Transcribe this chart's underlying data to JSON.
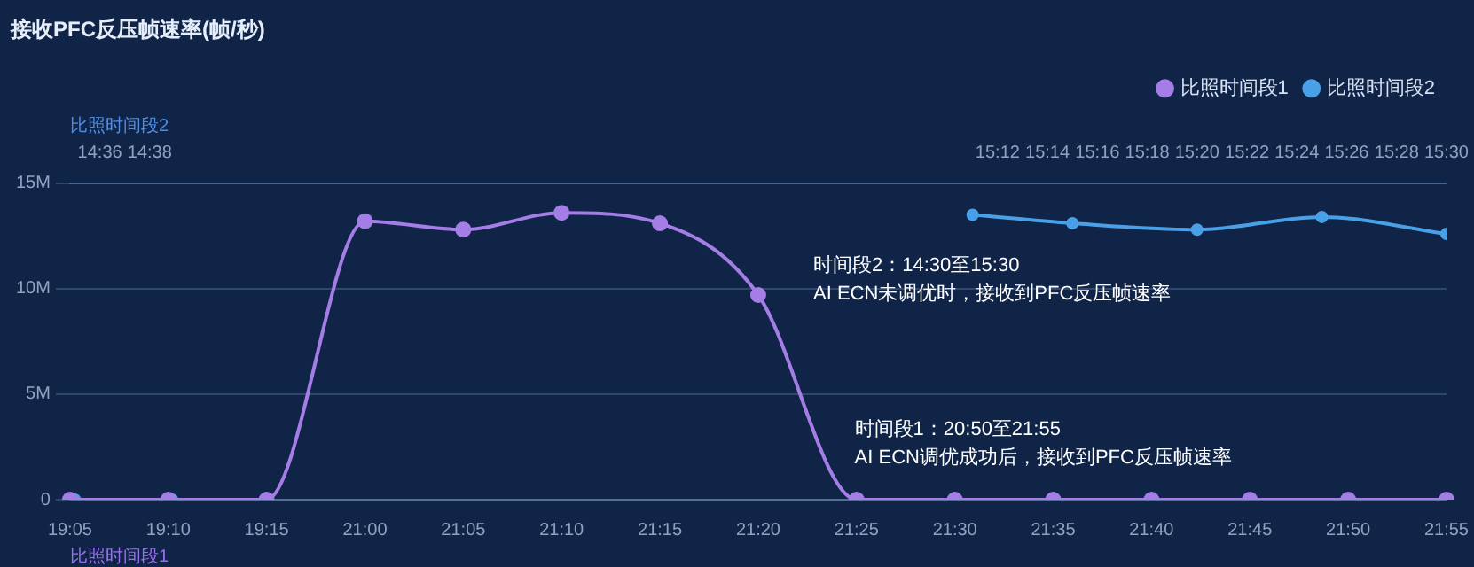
{
  "chart_data": {
    "type": "line",
    "title": "接收PFC反压帧速率(帧/秒)",
    "xlabel": "比照时间段1",
    "x2label": "比照时间段2",
    "categories": [
      "19:05",
      "19:10",
      "19:15",
      "21:00",
      "21:05",
      "21:10",
      "21:15",
      "21:20",
      "21:25",
      "21:30",
      "21:35",
      "21:40",
      "21:45",
      "21:50",
      "21:55"
    ],
    "series": [
      {
        "name": "比照时间段1",
        "color": "#a57de6",
        "values": [
          0,
          0,
          0,
          13200000,
          12800000,
          13600000,
          13100000,
          9700000,
          0,
          0,
          0,
          0,
          0,
          0,
          0
        ]
      },
      {
        "name": "比照时间段2",
        "color": "#4aa0e6",
        "axis": "x2",
        "x": [
          14.5833,
          14.6483,
          14.9,
          15.1833,
          15.25,
          15.3333,
          15.4167,
          15.5
        ],
        "values": [
          0,
          0,
          null,
          13500000,
          13100000,
          12800000,
          13400000,
          12600000
        ]
      }
    ],
    "ylim": [
      0,
      15000000
    ],
    "yticks": [
      0,
      {
        "value": 5000000,
        "label": "5M"
      },
      {
        "value": 10000000,
        "label": "10M"
      },
      {
        "value": 15000000,
        "label": "15M"
      }
    ],
    "x2lim": [
      14.58,
      15.5
    ],
    "x2ticks": [
      {
        "value": 14.6,
        "label": "14:36"
      },
      {
        "value": 14.6333,
        "label": "14:38"
      },
      {
        "value": 15.2,
        "label": "15:12"
      },
      {
        "value": 15.2333,
        "label": "15:14"
      },
      {
        "value": 15.2667,
        "label": "15:16"
      },
      {
        "value": 15.3,
        "label": "15:18"
      },
      {
        "value": 15.3333,
        "label": "15:20"
      },
      {
        "value": 15.3667,
        "label": "15:22"
      },
      {
        "value": 15.4,
        "label": "15:24"
      },
      {
        "value": 15.4333,
        "label": "15:26"
      },
      {
        "value": 15.4667,
        "label": "15:28"
      },
      {
        "value": 15.5,
        "label": "15:30"
      }
    ],
    "grid": "y",
    "legend": "top right",
    "marker": "circle",
    "line_style": "solid",
    "annotations": [
      "时间段2：14:30至15:30\nAI ECN未调优时，接收到PFC反压帧速率",
      "时间段1：20:50至21:55\nAI ECN调优成功后，接收到PFC反压帧速率"
    ]
  }
}
